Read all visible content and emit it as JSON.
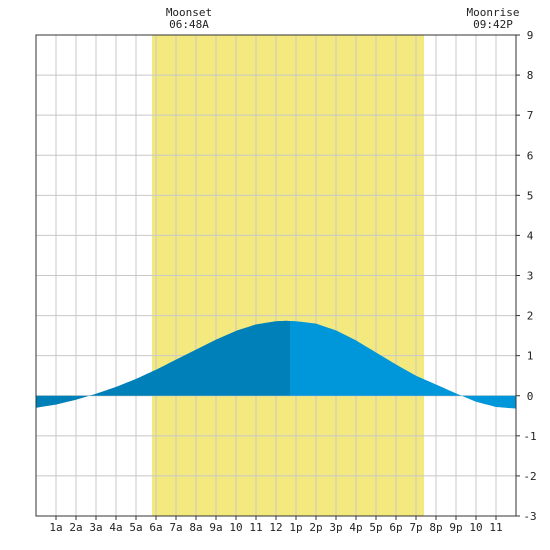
{
  "chart_data": {
    "type": "area",
    "x_tick_labels": [
      "1a",
      "2a",
      "3a",
      "4a",
      "5a",
      "6a",
      "7a",
      "8a",
      "9a",
      "10",
      "11",
      "12",
      "1p",
      "2p",
      "3p",
      "4p",
      "5p",
      "6p",
      "7p",
      "8p",
      "9p",
      "10",
      "11"
    ],
    "x_tick_hours": [
      1,
      2,
      3,
      4,
      5,
      6,
      7,
      8,
      9,
      10,
      11,
      12,
      13,
      14,
      15,
      16,
      17,
      18,
      19,
      20,
      21,
      22,
      23
    ],
    "xlim": [
      0,
      24
    ],
    "ylim": [
      -3,
      9
    ],
    "y_ticks": [
      -3,
      -2,
      -1,
      0,
      1,
      2,
      3,
      4,
      5,
      6,
      7,
      8,
      9
    ],
    "grid": true,
    "daylight": {
      "start_hour": 5.8,
      "end_hour": 19.4,
      "color": "#f3e97f"
    },
    "tide_series": {
      "hours": [
        0,
        1,
        2,
        3,
        4,
        5,
        6,
        7,
        8,
        9,
        10,
        11,
        12,
        12.5,
        13,
        14,
        15,
        16,
        17,
        18,
        19,
        20,
        21,
        22,
        23,
        24
      ],
      "values": [
        -0.3,
        -0.22,
        -0.1,
        0.05,
        0.22,
        0.42,
        0.65,
        0.9,
        1.15,
        1.4,
        1.62,
        1.78,
        1.86,
        1.87,
        1.86,
        1.8,
        1.63,
        1.38,
        1.08,
        0.78,
        0.5,
        0.28,
        0.06,
        -0.15,
        -0.28,
        -0.32
      ]
    },
    "split_hour": 12.7,
    "colors": {
      "rising": "#0080b8",
      "falling": "#0096da",
      "grid": "#c8c8c8",
      "axis": "#333333"
    },
    "moonset": {
      "label": "Moonset",
      "time": "06:48A"
    },
    "moonrise": {
      "label": "Moonrise",
      "time": "09:42P"
    }
  }
}
